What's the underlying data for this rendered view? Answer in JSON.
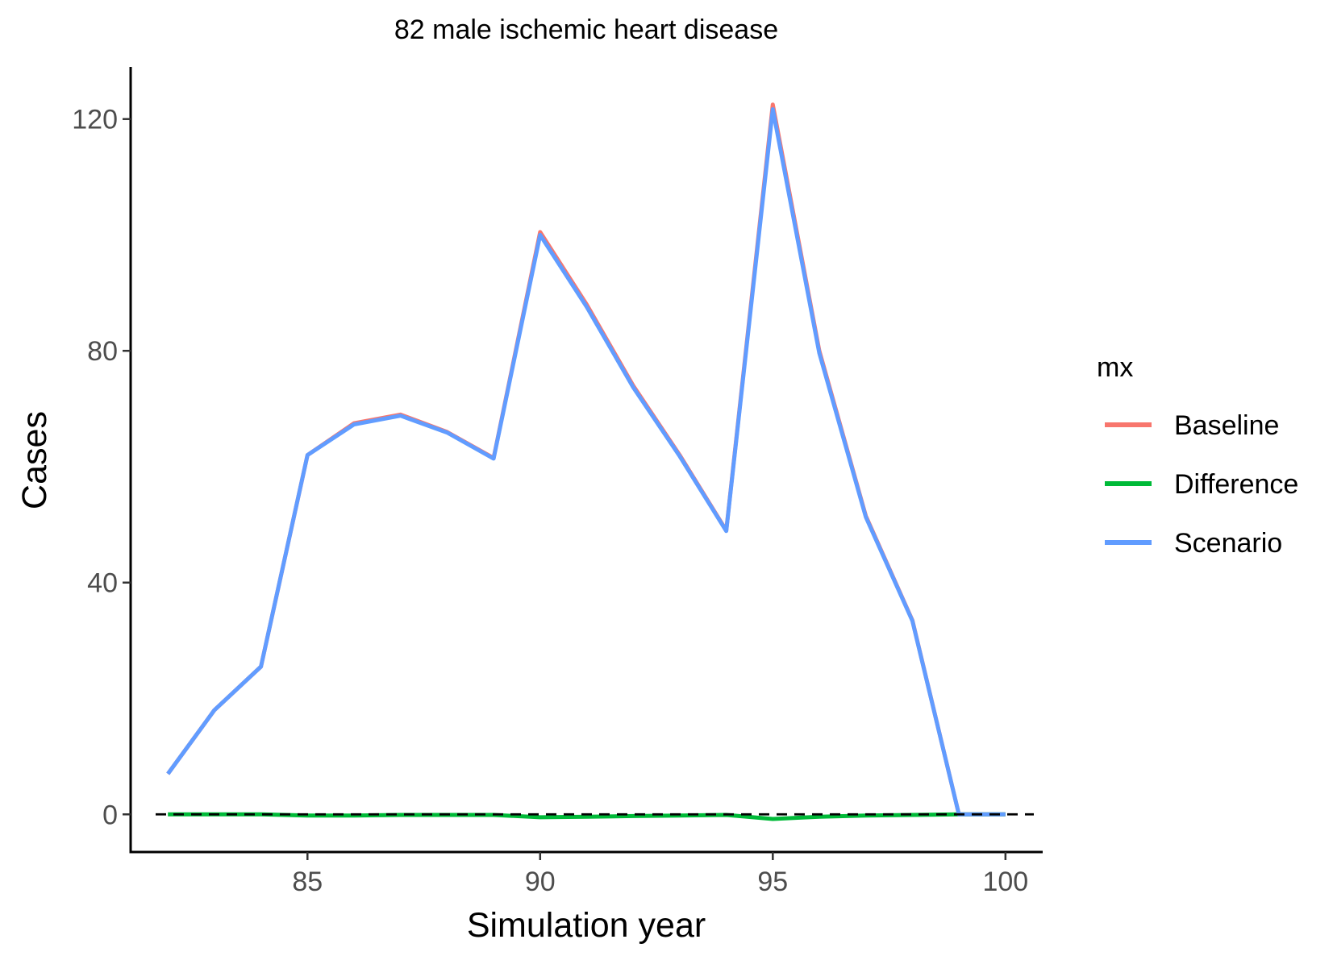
{
  "chart_data": {
    "type": "line",
    "title": "82 male ischemic heart disease",
    "xlabel": "Simulation year",
    "ylabel": "Cases",
    "xlim": [
      81.2,
      100.8
    ],
    "ylim": [
      -6.5,
      129
    ],
    "x_ticks": [
      85,
      90,
      95,
      100
    ],
    "y_ticks": [
      0,
      40,
      80,
      120
    ],
    "grid": false,
    "reference_line": {
      "y": 0,
      "style": "dashed",
      "color": "#000000"
    },
    "legend": {
      "title": "mx",
      "position": "right",
      "entries": [
        {
          "name": "Baseline",
          "color": "#F8766D"
        },
        {
          "name": "Difference",
          "color": "#00BA38"
        },
        {
          "name": "Scenario",
          "color": "#619CFF"
        }
      ]
    },
    "x": [
      82,
      83,
      84,
      85,
      86,
      87,
      88,
      89,
      90,
      91,
      92,
      93,
      94,
      95,
      96,
      97,
      98,
      99,
      100
    ],
    "series": [
      {
        "name": "Baseline",
        "color": "#F8766D",
        "values": [
          7,
          18,
          25.5,
          62,
          67.5,
          69,
          66,
          61.5,
          100.5,
          88,
          74,
          62,
          49,
          122.5,
          80,
          51.5,
          33.5,
          0,
          0
        ]
      },
      {
        "name": "Difference",
        "color": "#00BA38",
        "values": [
          0,
          0,
          0,
          -0.2,
          -0.2,
          -0.1,
          -0.1,
          -0.1,
          -0.5,
          -0.4,
          -0.3,
          -0.2,
          -0.1,
          -0.8,
          -0.4,
          -0.2,
          -0.1,
          0,
          0
        ]
      },
      {
        "name": "Scenario",
        "color": "#619CFF",
        "values": [
          7,
          18,
          25.5,
          62,
          67.3,
          68.8,
          65.9,
          61.4,
          100,
          87.6,
          73.7,
          61.8,
          48.9,
          121.7,
          79.6,
          51.3,
          33.4,
          0,
          0
        ]
      }
    ]
  }
}
